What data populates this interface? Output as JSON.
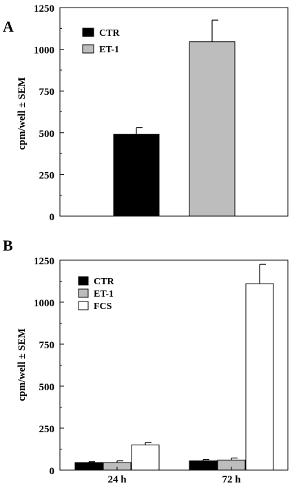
{
  "chart_data": [
    {
      "panel_label": "A",
      "type": "bar",
      "ylabel": "cpm/well ± SEM",
      "ylim": [
        0,
        1250
      ],
      "yticks": [
        0,
        250,
        500,
        750,
        1000,
        1250
      ],
      "categories": [
        ""
      ],
      "legend_position": "top-left",
      "series": [
        {
          "name": "CTR",
          "color": "#000000",
          "values": [
            490
          ],
          "errors": [
            40
          ]
        },
        {
          "name": "ET-1",
          "color": "#bdbdbd",
          "values": [
            1045
          ],
          "errors": [
            130
          ]
        }
      ]
    },
    {
      "panel_label": "B",
      "type": "bar",
      "ylabel": "cpm/well ± SEM",
      "ylim": [
        0,
        1250
      ],
      "yticks": [
        0,
        250,
        500,
        750,
        1000,
        1250
      ],
      "categories": [
        "24 h",
        "72 h"
      ],
      "legend_position": "top-left",
      "series": [
        {
          "name": "CTR",
          "color": "#000000",
          "values": [
            45,
            55
          ],
          "errors": [
            5,
            8
          ]
        },
        {
          "name": "ET-1",
          "color": "#bdbdbd",
          "values": [
            45,
            60
          ],
          "errors": [
            10,
            12
          ]
        },
        {
          "name": "FCS",
          "color": "#ffffff",
          "values": [
            150,
            1110
          ],
          "errors": [
            15,
            115
          ]
        }
      ]
    }
  ]
}
